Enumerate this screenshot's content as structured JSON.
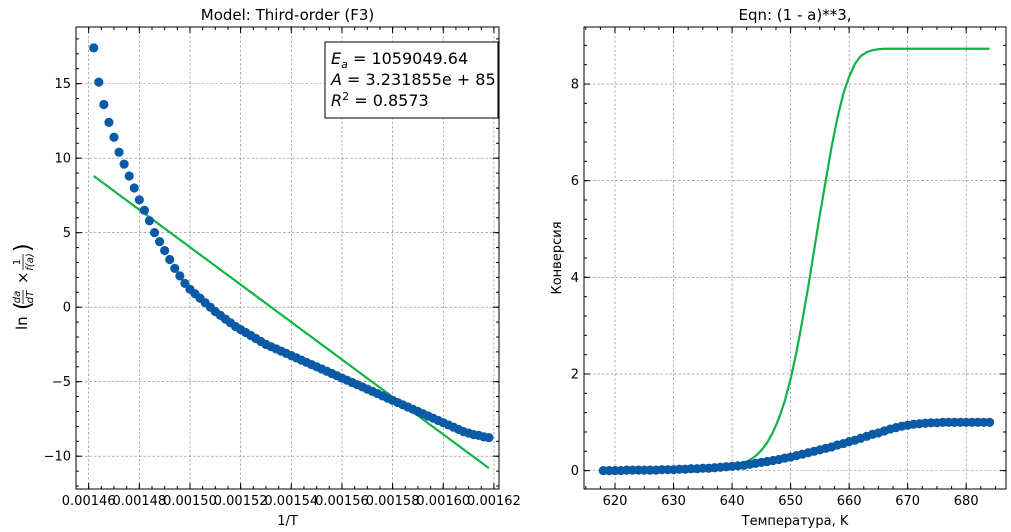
{
  "colors": {
    "points": "#0b5aa6",
    "fit": "#10b345",
    "grid": "#808080"
  },
  "chart_data": [
    {
      "type": "scatter",
      "title": "Model: Third-order (F3)",
      "xlabel": "1/T",
      "ylabel": "ln(da/dT × 1/f(a))",
      "xlim": [
        0.001455,
        0.001622
      ],
      "ylim": [
        -12.2,
        18.8
      ],
      "xticks": [
        0.00146,
        0.00148,
        0.0015,
        0.00152,
        0.00154,
        0.00156,
        0.00158,
        0.0016,
        0.00162
      ],
      "xtick_labels": [
        "0.00146",
        "0.00148",
        "0.00150",
        "0.00152",
        "0.00154",
        "0.00156",
        "0.00158",
        "0.00160",
        "0.00162"
      ],
      "yticks": [
        -10,
        -5,
        0,
        5,
        10,
        15
      ],
      "ytick_labels": [
        "−10",
        "−5",
        "0",
        "5",
        "10",
        "15"
      ],
      "grid": true,
      "annotation": {
        "lines": [
          "E_a = 1059049.64",
          "A = 3.231855e + 85",
          "R^2 = 0.8573"
        ],
        "placement": "top-right"
      },
      "series": [
        {
          "kind": "points",
          "x": [
            0.001462,
            0.001464,
            0.001466,
            0.001468,
            0.00147,
            0.001472,
            0.001474,
            0.001476,
            0.001478,
            0.00148,
            0.001482,
            0.001484,
            0.001486,
            0.001488,
            0.00149,
            0.001492,
            0.001494,
            0.001496,
            0.001498,
            0.0015,
            0.001502,
            0.001504,
            0.001506,
            0.001508,
            0.00151,
            0.001512,
            0.001514,
            0.001516,
            0.001518,
            0.00152,
            0.001522,
            0.001524,
            0.001526,
            0.001528,
            0.00153,
            0.001532,
            0.001534,
            0.001536,
            0.001538,
            0.00154,
            0.001542,
            0.001544,
            0.001546,
            0.001548,
            0.00155,
            0.001552,
            0.001554,
            0.001556,
            0.001558,
            0.00156,
            0.001562,
            0.001564,
            0.001566,
            0.001568,
            0.00157,
            0.001572,
            0.001574,
            0.001576,
            0.001578,
            0.00158,
            0.001582,
            0.001584,
            0.001586,
            0.001588,
            0.00159,
            0.001592,
            0.001594,
            0.001596,
            0.001598,
            0.0016,
            0.001602,
            0.001604,
            0.001606,
            0.001608,
            0.00161,
            0.001612,
            0.001614,
            0.001616,
            0.001618
          ],
          "y": [
            17.4,
            15.1,
            13.6,
            12.4,
            11.4,
            10.4,
            9.6,
            8.8,
            8.0,
            7.2,
            6.5,
            5.8,
            5.0,
            4.4,
            3.8,
            3.2,
            2.6,
            2.1,
            1.6,
            1.2,
            0.9,
            0.6,
            0.3,
            0.0,
            -0.3,
            -0.55,
            -0.8,
            -1.05,
            -1.3,
            -1.5,
            -1.7,
            -1.9,
            -2.1,
            -2.3,
            -2.5,
            -2.65,
            -2.8,
            -2.95,
            -3.1,
            -3.25,
            -3.4,
            -3.55,
            -3.7,
            -3.85,
            -4.0,
            -4.15,
            -4.3,
            -4.45,
            -4.6,
            -4.75,
            -4.9,
            -5.05,
            -5.2,
            -5.35,
            -5.5,
            -5.65,
            -5.8,
            -5.95,
            -6.1,
            -6.25,
            -6.4,
            -6.55,
            -6.7,
            -6.85,
            -7.0,
            -7.15,
            -7.3,
            -7.45,
            -7.6,
            -7.75,
            -7.9,
            -8.05,
            -8.2,
            -8.35,
            -8.45,
            -8.55,
            -8.6,
            -8.7,
            -8.75
          ]
        },
        {
          "kind": "line",
          "x": [
            0.001462,
            0.001618
          ],
          "y": [
            8.8,
            -10.8
          ]
        }
      ]
    },
    {
      "type": "scatter",
      "title": "Eqn: (1 - a)**3,",
      "xlabel": "Температура, K",
      "ylabel": "Конверсия",
      "xlim": [
        614.7,
        686.8
      ],
      "ylim": [
        -0.38,
        9.18
      ],
      "xticks": [
        620,
        630,
        640,
        650,
        660,
        670,
        680
      ],
      "xtick_labels": [
        "620",
        "630",
        "640",
        "650",
        "660",
        "670",
        "680"
      ],
      "yticks": [
        0,
        2,
        4,
        6,
        8
      ],
      "ytick_labels": [
        "0",
        "2",
        "4",
        "6",
        "8"
      ],
      "grid": true,
      "series": [
        {
          "kind": "points",
          "x": [
            618,
            619,
            620,
            621,
            622,
            623,
            624,
            625,
            626,
            627,
            628,
            629,
            630,
            631,
            632,
            633,
            634,
            635,
            636,
            637,
            638,
            639,
            640,
            641,
            642,
            643,
            644,
            645,
            646,
            647,
            648,
            649,
            650,
            651,
            652,
            653,
            654,
            655,
            656,
            657,
            658,
            659,
            660,
            661,
            662,
            663,
            664,
            665,
            666,
            667,
            668,
            669,
            670,
            671,
            672,
            673,
            674,
            675,
            676,
            677,
            678,
            679,
            680,
            681,
            682,
            683,
            684
          ],
          "y": [
            0.0,
            0.0,
            0.0,
            0.0,
            0.01,
            0.01,
            0.01,
            0.01,
            0.01,
            0.01,
            0.02,
            0.02,
            0.02,
            0.03,
            0.03,
            0.04,
            0.04,
            0.05,
            0.05,
            0.06,
            0.07,
            0.08,
            0.09,
            0.1,
            0.11,
            0.13,
            0.15,
            0.17,
            0.19,
            0.21,
            0.23,
            0.26,
            0.28,
            0.31,
            0.34,
            0.37,
            0.4,
            0.43,
            0.46,
            0.49,
            0.53,
            0.56,
            0.6,
            0.63,
            0.67,
            0.71,
            0.75,
            0.78,
            0.82,
            0.86,
            0.89,
            0.92,
            0.94,
            0.96,
            0.97,
            0.98,
            0.99,
            0.99,
            1.0,
            1.0,
            1.0,
            1.0,
            1.0,
            1.0,
            1.0,
            1.0,
            1.0
          ]
        },
        {
          "kind": "line",
          "x": [
            618,
            620,
            622,
            624,
            626,
            628,
            630,
            632,
            634,
            636,
            638,
            640,
            641,
            642,
            643,
            644,
            645,
            646,
            647,
            648,
            649,
            650,
            651,
            652,
            653,
            654,
            655,
            656,
            657,
            658,
            659,
            660,
            661,
            662,
            663,
            664,
            665,
            666,
            667,
            668,
            669,
            670,
            671,
            672,
            674,
            676,
            678,
            680,
            682,
            684
          ],
          "y": [
            0.0,
            0.0,
            0.0,
            0.0,
            0.01,
            0.01,
            0.01,
            0.02,
            0.03,
            0.04,
            0.06,
            0.09,
            0.12,
            0.16,
            0.22,
            0.3,
            0.42,
            0.58,
            0.8,
            1.08,
            1.44,
            1.9,
            2.45,
            3.1,
            3.8,
            4.55,
            5.3,
            6.0,
            6.7,
            7.3,
            7.8,
            8.15,
            8.42,
            8.58,
            8.66,
            8.7,
            8.72,
            8.73,
            8.73,
            8.73,
            8.73,
            8.73,
            8.73,
            8.73,
            8.73,
            8.73,
            8.73,
            8.73,
            8.73,
            8.73
          ]
        }
      ]
    }
  ]
}
